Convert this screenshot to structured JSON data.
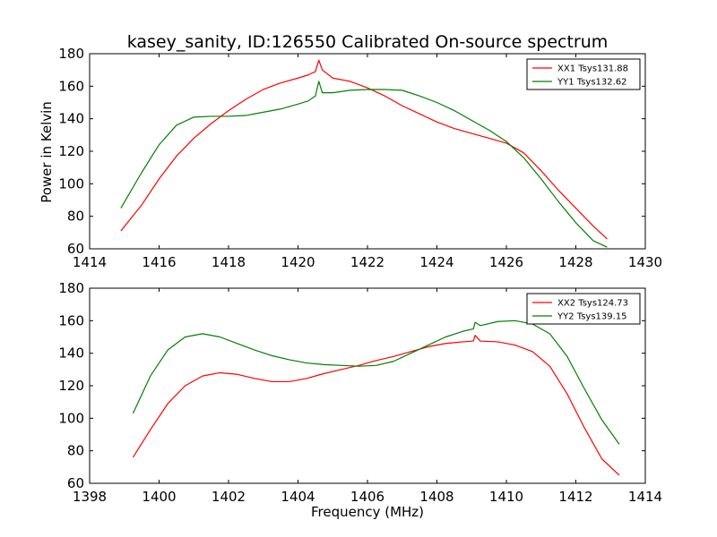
{
  "figure": {
    "title": "kasey_sanity, ID:126550 Calibrated On-source spectrum",
    "ylabel": "Power in Kelvin",
    "xlabel": "Frequency (MHz)"
  },
  "colors": {
    "xx": "#ff0000",
    "yy": "#008000"
  },
  "chart_data": [
    {
      "type": "line",
      "title": "kasey_sanity, ID:126550 Calibrated On-source spectrum",
      "xlabel": "",
      "ylabel": "Power in Kelvin",
      "xlim": [
        1414,
        1430
      ],
      "ylim": [
        60,
        180
      ],
      "xticks": [
        1414,
        1416,
        1418,
        1420,
        1422,
        1424,
        1426,
        1428,
        1430
      ],
      "yticks": [
        60,
        80,
        100,
        120,
        140,
        160,
        180
      ],
      "grid": false,
      "legend_position": "top-right",
      "series": [
        {
          "name": "XX1 Tsys131.88",
          "color": "#ff0000",
          "x": [
            1414.9,
            1415.5,
            1416.0,
            1416.5,
            1417.0,
            1417.5,
            1418.0,
            1418.5,
            1419.0,
            1419.5,
            1420.0,
            1420.3,
            1420.5,
            1420.6,
            1420.7,
            1421.0,
            1421.5,
            1422.0,
            1422.5,
            1423.0,
            1423.5,
            1424.0,
            1424.5,
            1425.0,
            1425.5,
            1426.0,
            1426.5,
            1427.0,
            1427.5,
            1428.0,
            1428.5,
            1428.9
          ],
          "y": [
            71,
            87,
            103,
            117,
            128,
            137,
            145,
            152,
            158,
            162,
            165,
            167,
            169,
            176,
            170,
            165,
            163,
            159,
            154,
            148,
            143,
            138,
            134,
            131,
            128,
            125,
            119,
            108,
            96,
            85,
            74,
            66
          ]
        },
        {
          "name": "YY1 Tsys132.62",
          "color": "#008000",
          "x": [
            1414.9,
            1415.5,
            1416.0,
            1416.5,
            1417.0,
            1417.5,
            1418.0,
            1418.5,
            1419.0,
            1419.5,
            1420.0,
            1420.3,
            1420.5,
            1420.6,
            1420.7,
            1421.0,
            1421.5,
            1422.0,
            1422.5,
            1423.0,
            1423.5,
            1424.0,
            1424.5,
            1425.0,
            1425.5,
            1426.0,
            1426.5,
            1427.0,
            1427.5,
            1428.0,
            1428.5,
            1428.9
          ],
          "y": [
            85,
            107,
            124,
            136,
            141,
            141.5,
            141.5,
            142,
            144,
            146,
            149,
            151,
            154,
            163,
            156,
            156,
            157.5,
            158,
            158,
            157.5,
            154,
            150,
            145,
            139,
            133,
            126,
            116,
            103,
            89,
            76,
            65,
            61
          ]
        }
      ]
    },
    {
      "type": "line",
      "title": "",
      "xlabel": "Frequency (MHz)",
      "ylabel": "",
      "xlim": [
        1398,
        1414
      ],
      "ylim": [
        60,
        180
      ],
      "xticks": [
        1398,
        1400,
        1402,
        1404,
        1406,
        1408,
        1410,
        1412,
        1414
      ],
      "yticks": [
        60,
        80,
        100,
        120,
        140,
        160,
        180
      ],
      "grid": false,
      "legend_position": "top-right",
      "series": [
        {
          "name": "XX2 Tsys124.73",
          "color": "#ff0000",
          "x": [
            1399.25,
            1399.75,
            1400.25,
            1400.75,
            1401.25,
            1401.75,
            1402.25,
            1402.75,
            1403.25,
            1403.75,
            1404.25,
            1404.75,
            1405.25,
            1405.75,
            1406.25,
            1406.75,
            1407.25,
            1407.75,
            1408.25,
            1408.75,
            1409.05,
            1409.1,
            1409.25,
            1409.75,
            1410.25,
            1410.75,
            1411.25,
            1411.75,
            1412.25,
            1412.75,
            1413.25
          ],
          "y": [
            76,
            93,
            109,
            120,
            126,
            128,
            127,
            124.5,
            122.5,
            122.5,
            124.5,
            127.5,
            130,
            132.5,
            135.5,
            138,
            141,
            144,
            146,
            147,
            147.5,
            151,
            147.5,
            147,
            145,
            141,
            132,
            115,
            94,
            75,
            65
          ]
        },
        {
          "name": "YY2 Tsys139.15",
          "color": "#008000",
          "x": [
            1399.25,
            1399.75,
            1400.25,
            1400.75,
            1401.25,
            1401.75,
            1402.25,
            1402.75,
            1403.25,
            1403.75,
            1404.25,
            1404.75,
            1405.25,
            1405.75,
            1406.25,
            1406.75,
            1407.25,
            1407.75,
            1408.25,
            1408.75,
            1409.05,
            1409.1,
            1409.25,
            1409.75,
            1410.25,
            1410.75,
            1411.25,
            1411.75,
            1412.25,
            1412.75,
            1413.25
          ],
          "y": [
            103,
            126,
            142,
            150,
            152,
            150,
            146,
            142,
            138.5,
            136,
            134,
            133,
            132.5,
            132,
            132.5,
            135,
            140,
            145,
            150,
            153.5,
            155,
            159,
            157,
            159.5,
            160,
            158,
            152,
            138,
            118,
            99,
            84
          ]
        }
      ]
    }
  ]
}
